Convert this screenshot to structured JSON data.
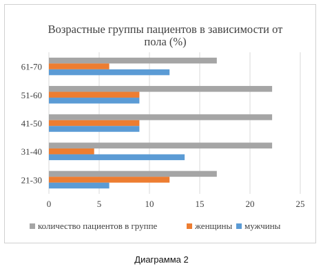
{
  "chart_data": {
    "type": "bar",
    "orientation": "horizontal",
    "title": "Возрастные группы пациентов в зависимости от пола (%)",
    "title_lines": [
      "Возрастные группы пациентов в зависимости от",
      "пола (%)"
    ],
    "categories": [
      "21-30",
      "31-40",
      "41-50",
      "51-60",
      "61-70"
    ],
    "series": [
      {
        "name": "количество пациентов в группе",
        "color": "#a5a5a5",
        "values": [
          16.7,
          22.2,
          22.2,
          22.2,
          16.7
        ]
      },
      {
        "name": "женщины",
        "color": "#ed7d31",
        "values": [
          12,
          4.5,
          9,
          9,
          6
        ]
      },
      {
        "name": "мужчины",
        "color": "#5b9bd5",
        "values": [
          6,
          13.5,
          9,
          9,
          12
        ]
      }
    ],
    "xlim": [
      0,
      25
    ],
    "xticks": [
      "0",
      "5",
      "10",
      "15",
      "20",
      "25"
    ],
    "grid": true,
    "legend_position": "bottom"
  },
  "caption": "Диаграмма 2"
}
